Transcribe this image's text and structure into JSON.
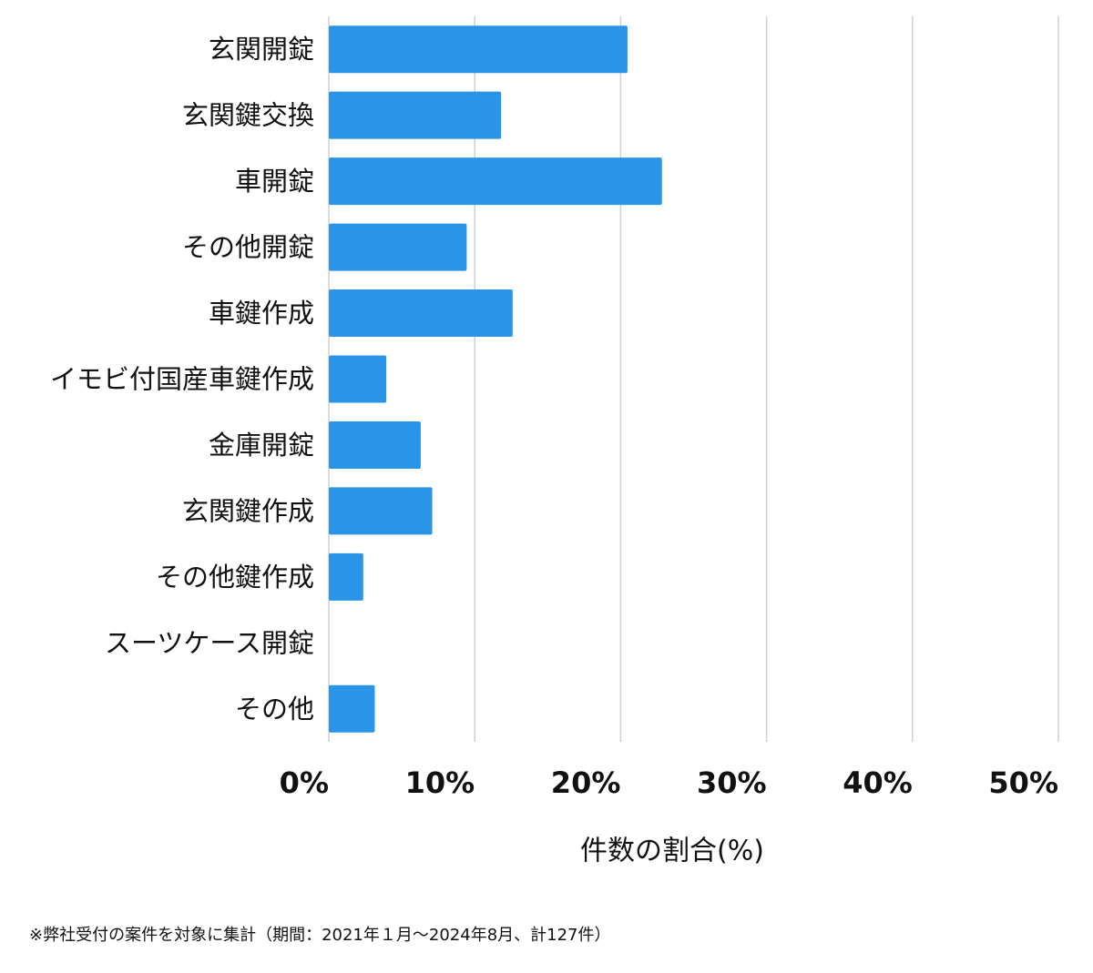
{
  "chart_data": {
    "type": "bar",
    "orientation": "horizontal",
    "categories": [
      "玄関開錠",
      "玄関鍵交換",
      "車開錠",
      "その他開錠",
      "車鍵作成",
      "イモビ付国産車鍵作成",
      "金庫開錠",
      "玄関鍵作成",
      "その他鍵作成",
      "スーツケース開錠",
      "その他"
    ],
    "values": [
      20.47,
      11.81,
      22.83,
      9.45,
      12.6,
      3.94,
      6.3,
      7.09,
      2.36,
      0,
      3.15
    ],
    "color": "#2a95e8",
    "xlim": [
      0,
      50
    ],
    "xticks": [
      {
        "value": 0,
        "label": "0%"
      },
      {
        "value": 10,
        "label": "10%"
      },
      {
        "value": 20,
        "label": "20%"
      },
      {
        "value": 30,
        "label": "30%"
      },
      {
        "value": 40,
        "label": "40%"
      },
      {
        "value": 50,
        "label": "50%"
      }
    ],
    "xlabel": "件数の割合(%)",
    "grid": true,
    "footnote": "※弊社受付の案件を対象に集計（期間：2021年１月〜2024年8月、計127件）"
  }
}
